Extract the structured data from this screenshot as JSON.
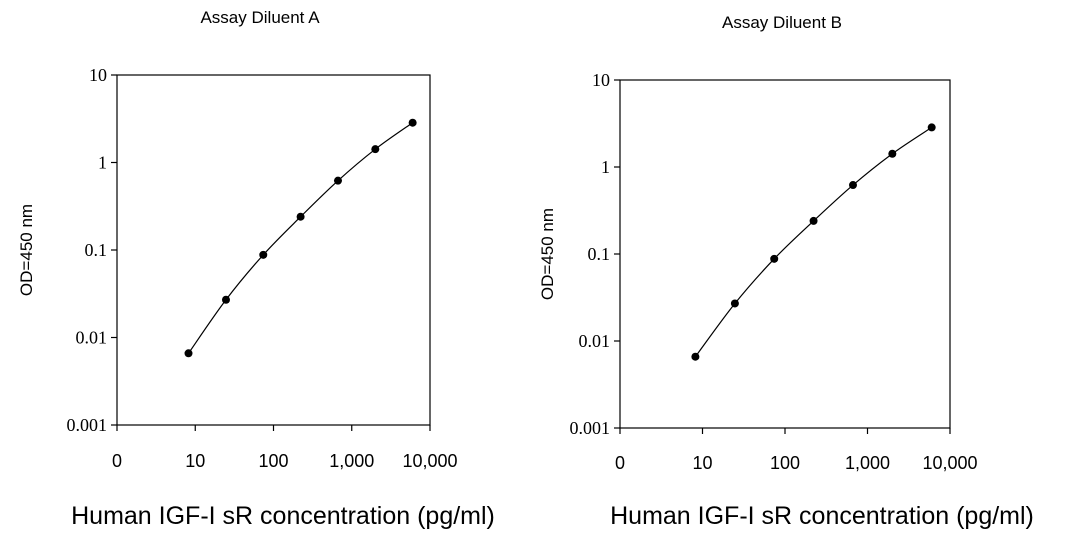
{
  "chart_data": [
    {
      "type": "line",
      "title": "Assay Diluent A",
      "xlabel": "Human IGF-I sR concentration (pg/ml)",
      "ylabel": "OD=450 nm",
      "x_scale": "log",
      "y_scale": "log",
      "xlim": [
        1,
        10000
      ],
      "ylim": [
        0.001,
        10
      ],
      "x_ticks": [
        1,
        10,
        100,
        1000,
        10000
      ],
      "x_tick_labels": [
        "0",
        "10",
        "100",
        "1,000",
        "10,000"
      ],
      "y_ticks": [
        0.001,
        0.01,
        0.1,
        1,
        10
      ],
      "y_tick_labels": [
        "0.001",
        "0.01",
        "0.1",
        "1",
        "10"
      ],
      "grid": false,
      "series": [
        {
          "x": [
            8.2,
            24.7,
            74,
            222,
            667,
            2000,
            6000
          ],
          "y": [
            0.0066,
            0.027,
            0.088,
            0.24,
            0.62,
            1.42,
            2.85
          ]
        }
      ]
    },
    {
      "type": "line",
      "title": "Assay Diluent B",
      "xlabel": "Human IGF-I sR concentration (pg/ml)",
      "ylabel": "OD=450 nm",
      "x_scale": "log",
      "y_scale": "log",
      "xlim": [
        1,
        10000
      ],
      "ylim": [
        0.001,
        10
      ],
      "x_ticks": [
        1,
        10,
        100,
        1000,
        10000
      ],
      "x_tick_labels": [
        "0",
        "10",
        "100",
        "1,000",
        "10,000"
      ],
      "y_ticks": [
        0.001,
        0.01,
        0.1,
        1,
        10
      ],
      "y_tick_labels": [
        "0.001",
        "0.01",
        "0.1",
        "1",
        "10"
      ],
      "grid": false,
      "series": [
        {
          "x": [
            8.2,
            24.7,
            74,
            222,
            667,
            2000,
            6000
          ],
          "y": [
            0.0066,
            0.027,
            0.088,
            0.24,
            0.62,
            1.42,
            2.85
          ]
        }
      ]
    }
  ]
}
